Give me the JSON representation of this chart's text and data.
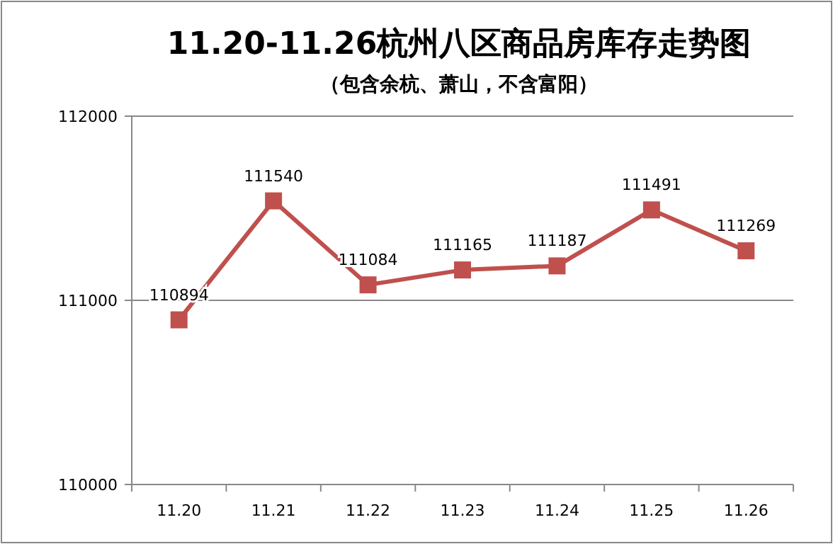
{
  "chart_data": {
    "type": "line",
    "title": "11.20-11.26杭州八区商品房库存走势图",
    "subtitle": "（包含余杭、萧山，不含富阳）",
    "categories": [
      "11.20",
      "11.21",
      "11.22",
      "11.23",
      "11.24",
      "11.25",
      "11.26"
    ],
    "series": [
      {
        "color": "#c0504d",
        "values": [
          110894,
          111540,
          111084,
          111165,
          111187,
          111491,
          111269
        ]
      }
    ],
    "ylim": [
      110000,
      112000
    ],
    "yticks": [
      110000,
      111000,
      112000
    ],
    "grid": "y",
    "marker": "square",
    "line_style": "solid",
    "data_labels": true
  }
}
